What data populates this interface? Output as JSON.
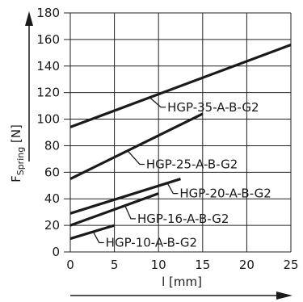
{
  "chart_data": {
    "type": "line",
    "xlabel": "l [mm]",
    "ylabel": {
      "base": "F",
      "sub": "Spring",
      "unit": " [N]"
    },
    "xlim": [
      0,
      25
    ],
    "ylim": [
      0,
      180
    ],
    "x_ticks": [
      0,
      5,
      10,
      15,
      20,
      25
    ],
    "y_ticks": [
      0,
      20,
      40,
      60,
      80,
      100,
      120,
      140,
      160,
      180
    ],
    "x_tick_labels": [
      "0",
      "5",
      "10",
      "15",
      "20",
      "25"
    ],
    "y_tick_labels": [
      "0",
      "20",
      "40",
      "60",
      "80",
      "100",
      "120",
      "140",
      "160",
      "180"
    ],
    "grid": true,
    "axis_arrows": true,
    "series": [
      {
        "name": "HGP-35-A-B-G2",
        "x": [
          0,
          25
        ],
        "y": [
          94,
          156
        ],
        "label_anchor_x": 9.0,
        "label_x": 11.0,
        "label_y": 109
      },
      {
        "name": "HGP-25-A-B-G2",
        "x": [
          0,
          15
        ],
        "y": [
          55,
          104
        ],
        "label_anchor_x": 6.5,
        "label_x": 8.6,
        "label_y": 66
      },
      {
        "name": "HGP-20-A-B-G2",
        "x": [
          0,
          12.5
        ],
        "y": [
          29,
          55
        ],
        "label_anchor_x": 11.0,
        "label_x": 12.4,
        "label_y": 44
      },
      {
        "name": "HGP-16-A-B-G2",
        "x": [
          0,
          10
        ],
        "y": [
          20,
          44
        ],
        "label_anchor_x": 6.2,
        "label_x": 7.6,
        "label_y": 25
      },
      {
        "name": "HGP-10-A-B-G2",
        "x": [
          0,
          5
        ],
        "y": [
          10,
          20
        ],
        "label_anchor_x": 2.6,
        "label_x": 4.0,
        "label_y": 7
      }
    ]
  }
}
